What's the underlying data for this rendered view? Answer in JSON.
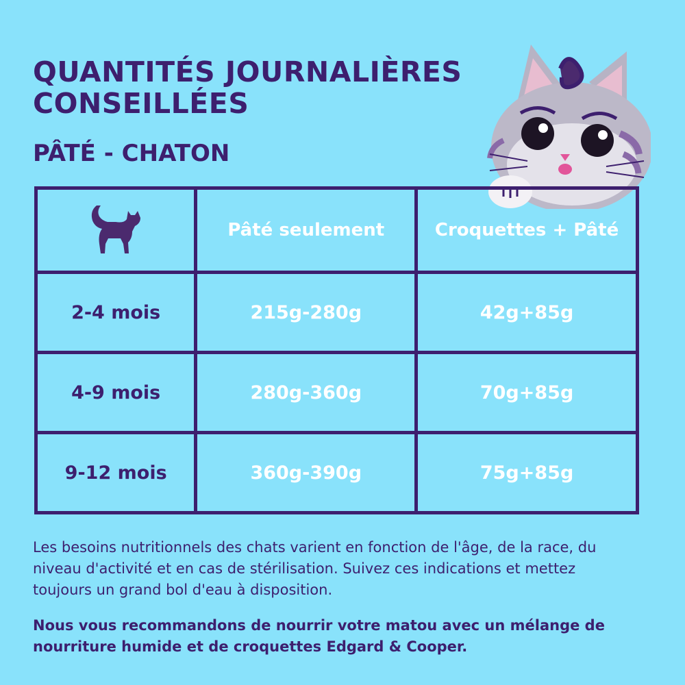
{
  "header": {
    "title": "QUANTITÉS JOURNALIÈRES CONSEILLÉES",
    "subtitle": "PÂTÉ - CHATON"
  },
  "table": {
    "header_icon": "cat-silhouette-icon",
    "columns": [
      "Pâté seulement",
      "Croquettes + Pâté"
    ],
    "rows": [
      {
        "age": "2-4 mois",
        "pate": "215g-280g",
        "mix": "42g+85g"
      },
      {
        "age": "4-9 mois",
        "pate": "280g-360g",
        "mix": "70g+85g"
      },
      {
        "age": "9-12 mois",
        "pate": "360g-390g",
        "mix": "75g+85g"
      }
    ]
  },
  "footer": {
    "note": "Les besoins nutritionnels des chats varient en fonction de l'âge, de la race, du niveau d'activité et en cas de stérilisation. Suivez ces indications et mettez toujours un grand bol d'eau à disposition.",
    "recommendation": "Nous vous recommandons de nourrir votre matou avec un mélange de nourriture humide et de croquettes Edgard & Cooper."
  },
  "colors": {
    "background": "#89e2fb",
    "ink": "#3d1f6e",
    "value_text": "#ffffff"
  }
}
